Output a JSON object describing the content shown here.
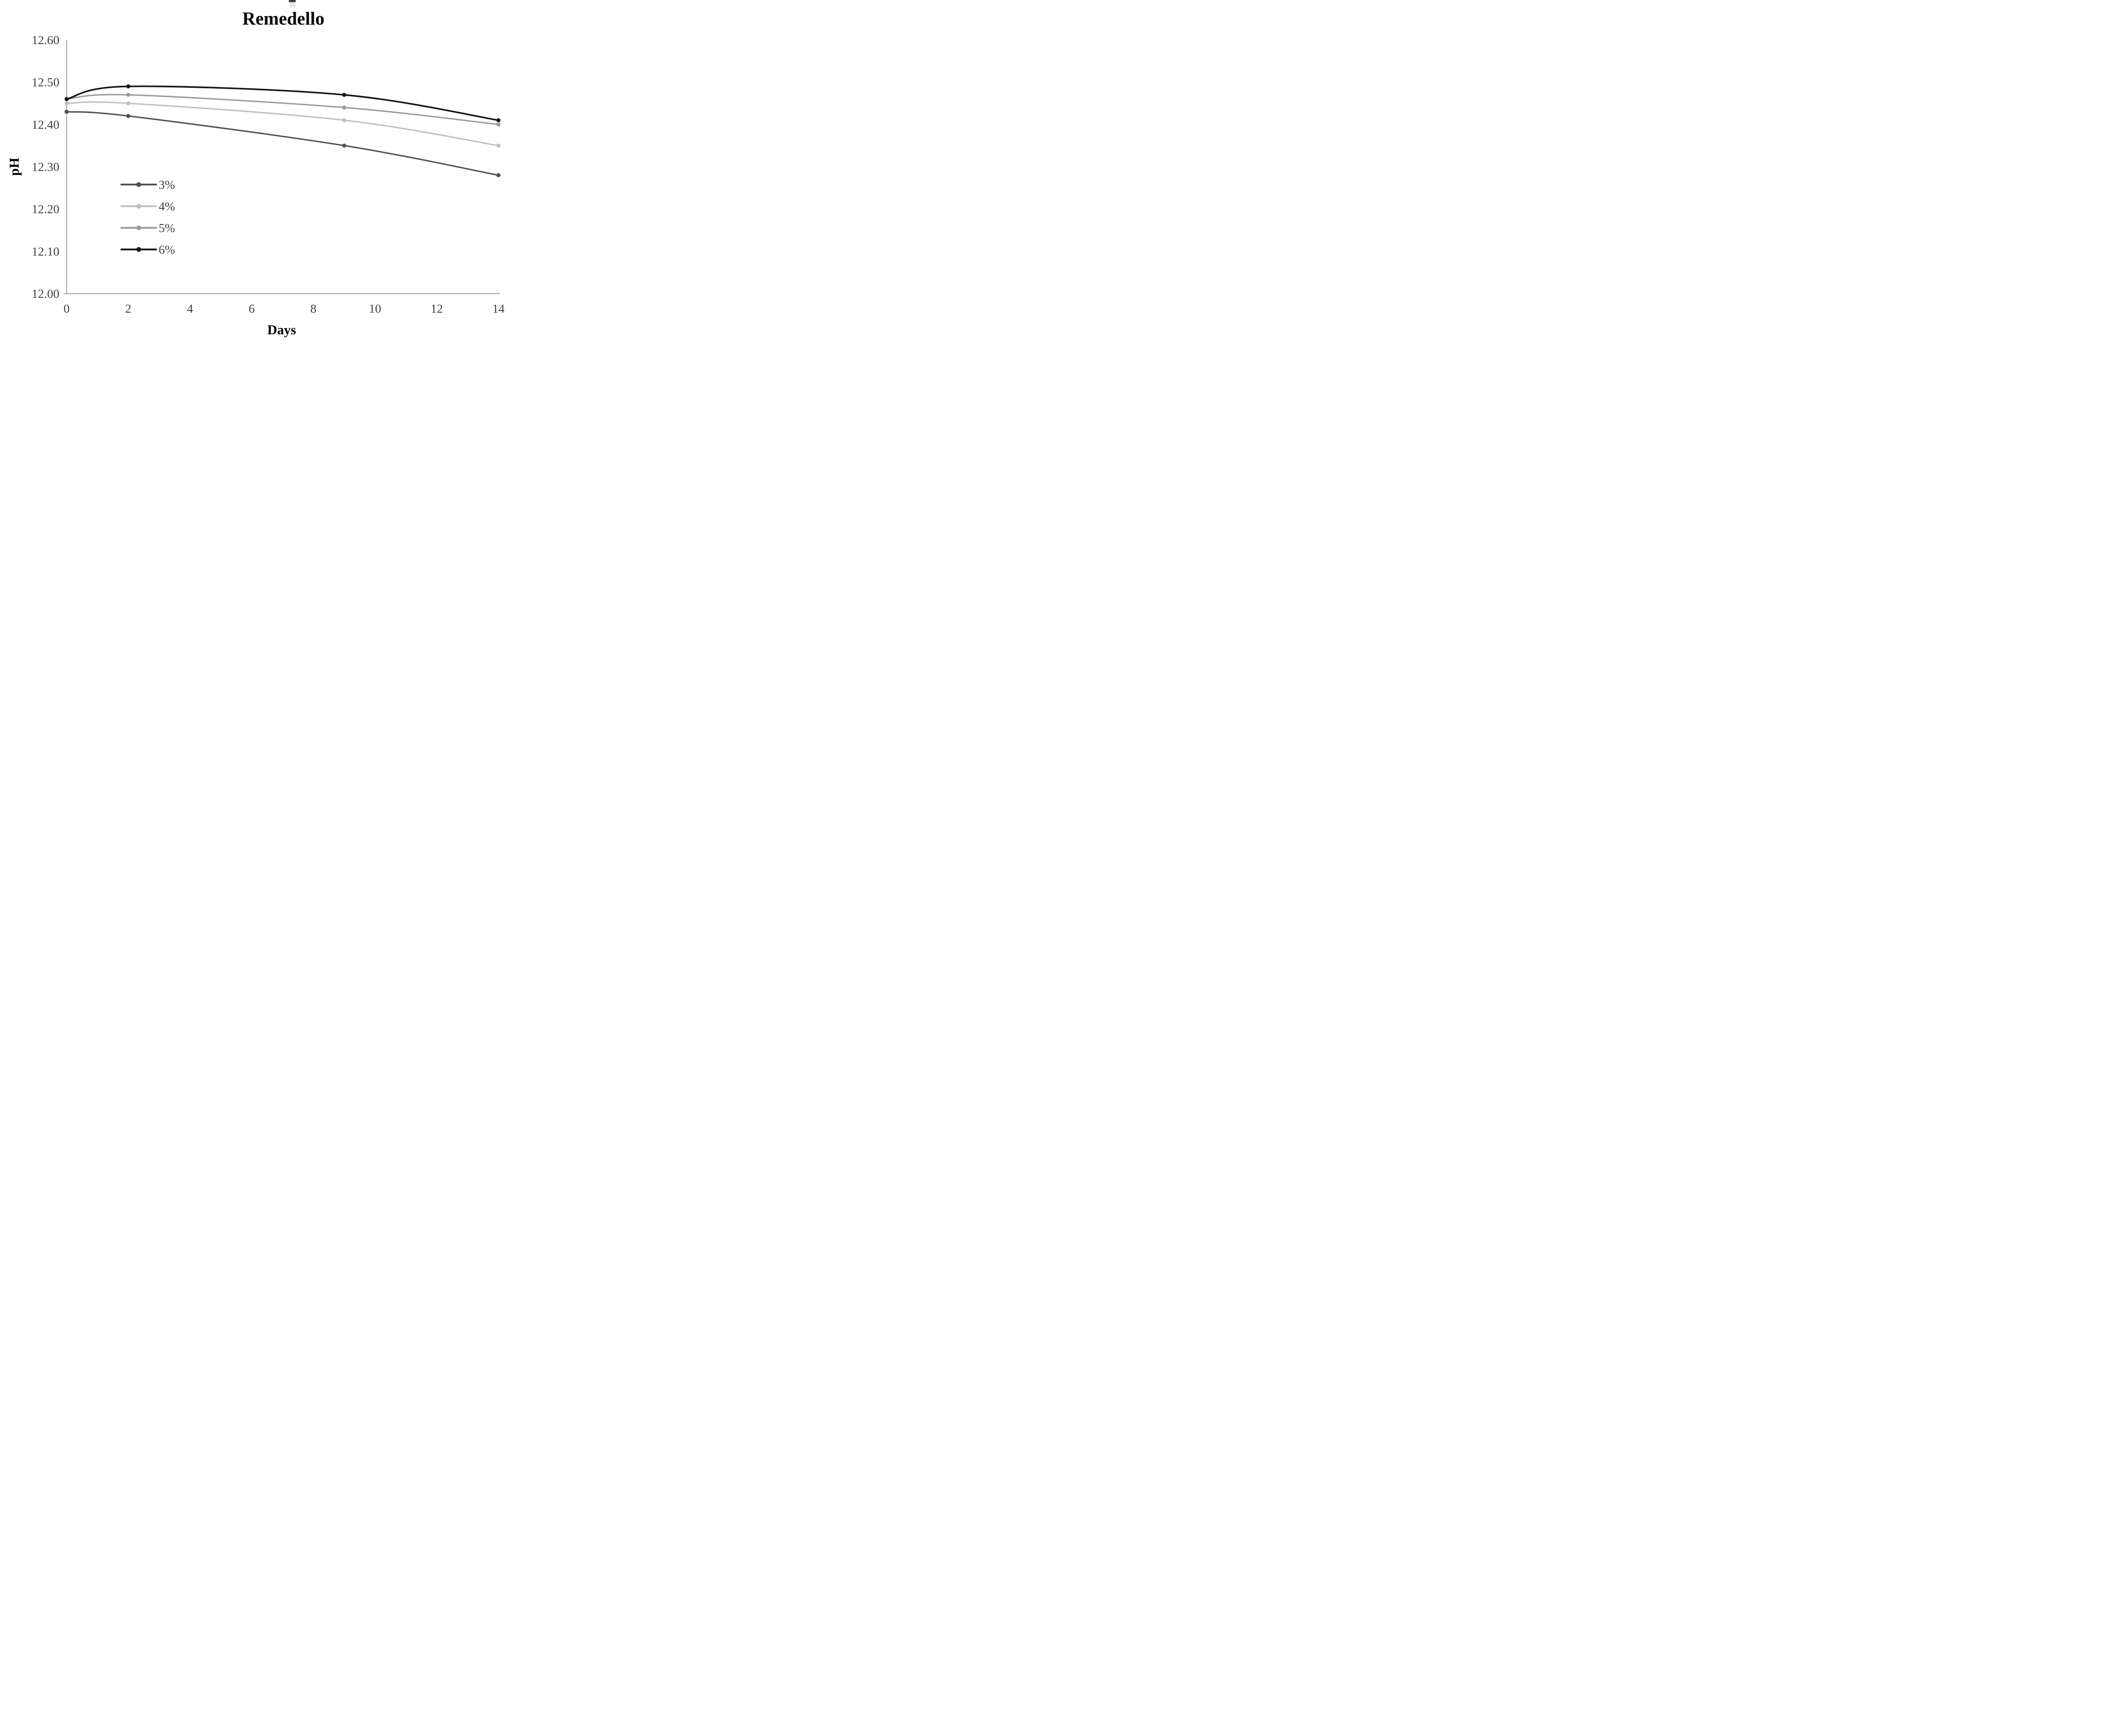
{
  "chart_data": {
    "type": "line",
    "title": "Remedello",
    "xlabel": "Days",
    "ylabel": "pH",
    "x": [
      0,
      2,
      9,
      14
    ],
    "series": [
      {
        "name": "3%",
        "color": "#4f4f4f",
        "values": [
          12.43,
          12.42,
          12.35,
          12.28
        ]
      },
      {
        "name": "4%",
        "color": "#bfbfbf",
        "values": [
          12.45,
          12.45,
          12.41,
          12.35
        ]
      },
      {
        "name": "5%",
        "color": "#9b9b9b",
        "values": [
          12.46,
          12.47,
          12.44,
          12.4
        ]
      },
      {
        "name": "6%",
        "color": "#161616",
        "values": [
          12.46,
          12.49,
          12.47,
          12.41
        ]
      }
    ],
    "xlim": [
      0,
      14
    ],
    "ylim": [
      12.0,
      12.6
    ],
    "xticks": [
      "0",
      "2",
      "4",
      "6",
      "8",
      "10",
      "12",
      "14"
    ],
    "yticks": [
      "12.00",
      "12.10",
      "12.20",
      "12.30",
      "12.40",
      "12.50",
      "12.60"
    ],
    "grid": false,
    "legend_position": "inside-left",
    "legend_entries": [
      "3%",
      "4%",
      "5%",
      "6%"
    ],
    "axis_color": "#b3b3b3",
    "tick_text_color": "#3f3f3f",
    "line_style": "smooth",
    "marker": "circle"
  }
}
